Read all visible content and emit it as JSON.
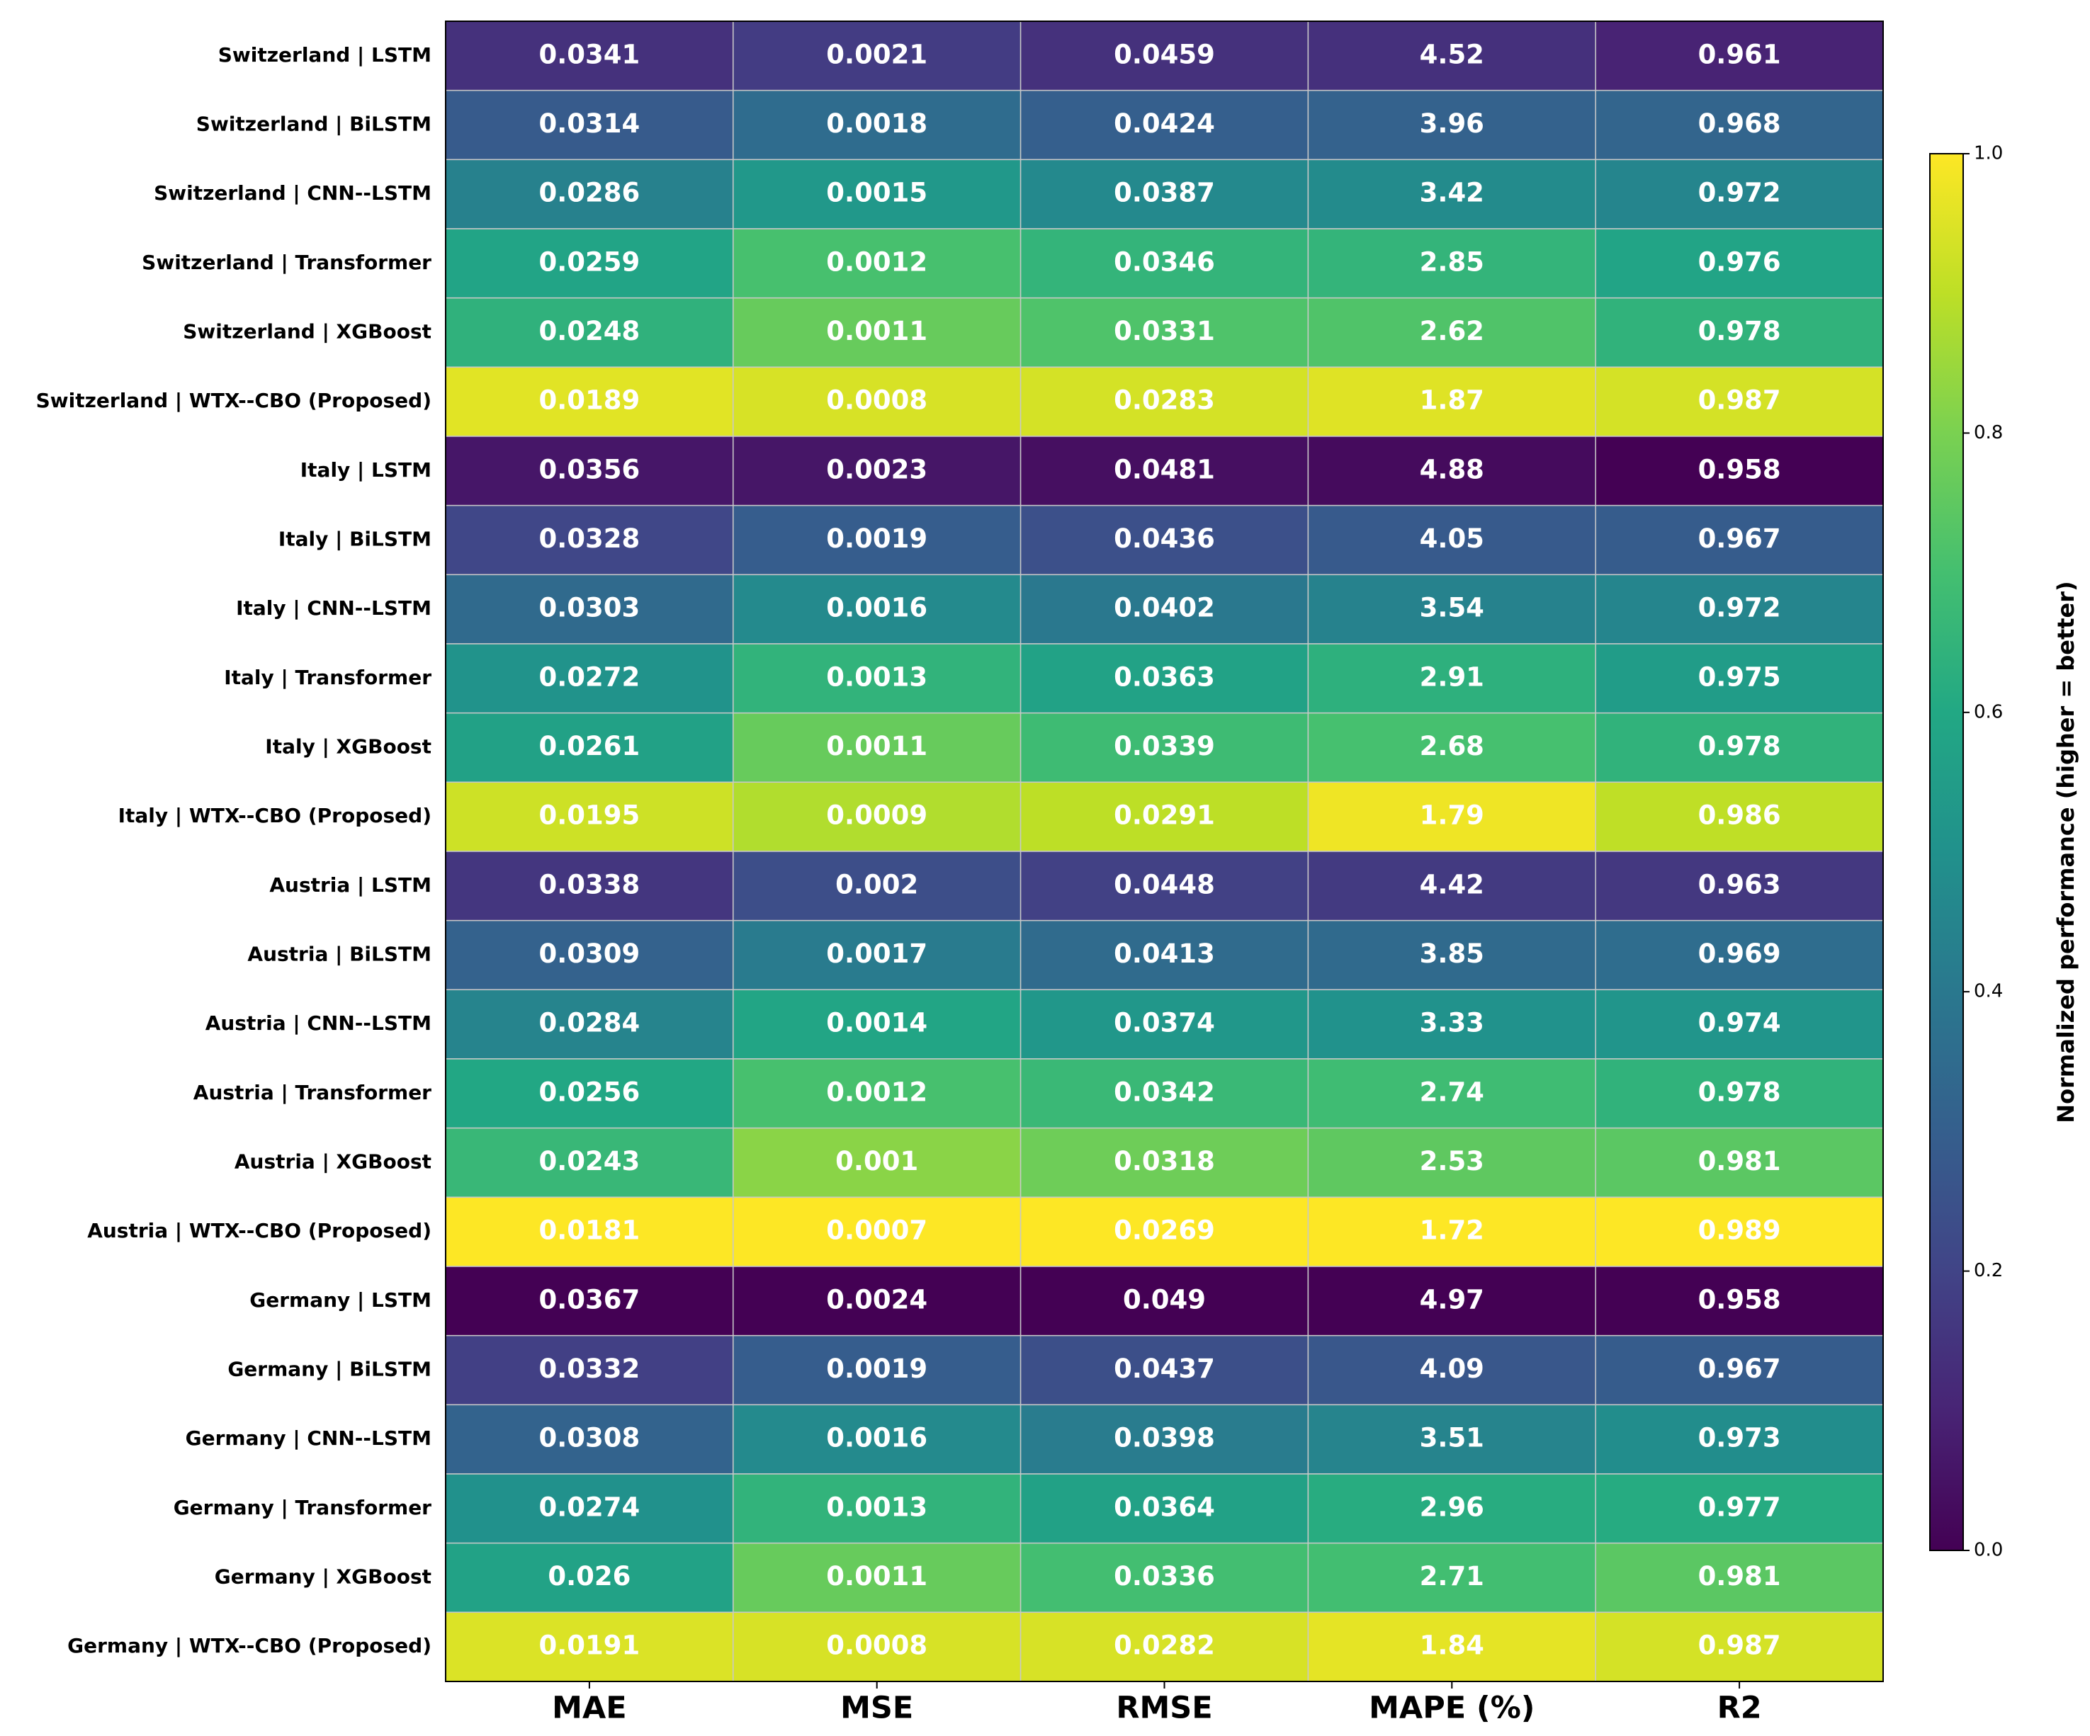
{
  "chart_data": {
    "type": "heatmap",
    "rows": [
      "Switzerland | LSTM",
      "Switzerland | BiLSTM",
      "Switzerland | CNN--LSTM",
      "Switzerland | Transformer",
      "Switzerland | XGBoost",
      "Switzerland | WTX--CBO (Proposed)",
      "Italy | LSTM",
      "Italy | BiLSTM",
      "Italy | CNN--LSTM",
      "Italy | Transformer",
      "Italy | XGBoost",
      "Italy | WTX--CBO (Proposed)",
      "Austria | LSTM",
      "Austria | BiLSTM",
      "Austria | CNN--LSTM",
      "Austria | Transformer",
      "Austria | XGBoost",
      "Austria | WTX--CBO (Proposed)",
      "Germany | LSTM",
      "Germany | BiLSTM",
      "Germany | CNN--LSTM",
      "Germany | Transformer",
      "Germany | XGBoost",
      "Germany | WTX--CBO (Proposed)"
    ],
    "columns": [
      "MAE",
      "MSE",
      "RMSE",
      "MAPE (%)",
      "R2"
    ],
    "values": [
      [
        0.0341,
        0.0021,
        0.0459,
        4.52,
        0.961
      ],
      [
        0.0314,
        0.0018,
        0.0424,
        3.96,
        0.968
      ],
      [
        0.0286,
        0.0015,
        0.0387,
        3.42,
        0.972
      ],
      [
        0.0259,
        0.0012,
        0.0346,
        2.85,
        0.976
      ],
      [
        0.0248,
        0.0011,
        0.0331,
        2.62,
        0.978
      ],
      [
        0.0189,
        0.0008,
        0.0283,
        1.87,
        0.987
      ],
      [
        0.0356,
        0.0023,
        0.0481,
        4.88,
        0.958
      ],
      [
        0.0328,
        0.0019,
        0.0436,
        4.05,
        0.967
      ],
      [
        0.0303,
        0.0016,
        0.0402,
        3.54,
        0.972
      ],
      [
        0.0272,
        0.0013,
        0.0363,
        2.91,
        0.975
      ],
      [
        0.0261,
        0.0011,
        0.0339,
        2.68,
        0.978
      ],
      [
        0.0195,
        0.0009,
        0.0291,
        1.79,
        0.986
      ],
      [
        0.0338,
        0.002,
        0.0448,
        4.42,
        0.963
      ],
      [
        0.0309,
        0.0017,
        0.0413,
        3.85,
        0.969
      ],
      [
        0.0284,
        0.0014,
        0.0374,
        3.33,
        0.974
      ],
      [
        0.0256,
        0.0012,
        0.0342,
        2.74,
        0.978
      ],
      [
        0.0243,
        0.001,
        0.0318,
        2.53,
        0.981
      ],
      [
        0.0181,
        0.0007,
        0.0269,
        1.72,
        0.989
      ],
      [
        0.0367,
        0.0024,
        0.049,
        4.97,
        0.958
      ],
      [
        0.0332,
        0.0019,
        0.0437,
        4.09,
        0.967
      ],
      [
        0.0308,
        0.0016,
        0.0398,
        3.51,
        0.973
      ],
      [
        0.0274,
        0.0013,
        0.0364,
        2.96,
        0.977
      ],
      [
        0.026,
        0.0011,
        0.0336,
        2.71,
        0.981
      ],
      [
        0.0191,
        0.0008,
        0.0282,
        1.84,
        0.987
      ]
    ],
    "colormap": "viridis",
    "colorbar": {
      "label": "Normalized performance (higher = better)",
      "lim": [
        0,
        1
      ],
      "ticks": [
        {
          "value": 0,
          "label": "0.0"
        },
        {
          "value": 0.2,
          "label": "0.2"
        },
        {
          "value": 0.4,
          "label": "0.4"
        },
        {
          "value": 0.6,
          "label": "0.6"
        },
        {
          "value": 0.8,
          "label": "0.8"
        },
        {
          "value": 1,
          "label": "1.0"
        }
      ]
    }
  }
}
